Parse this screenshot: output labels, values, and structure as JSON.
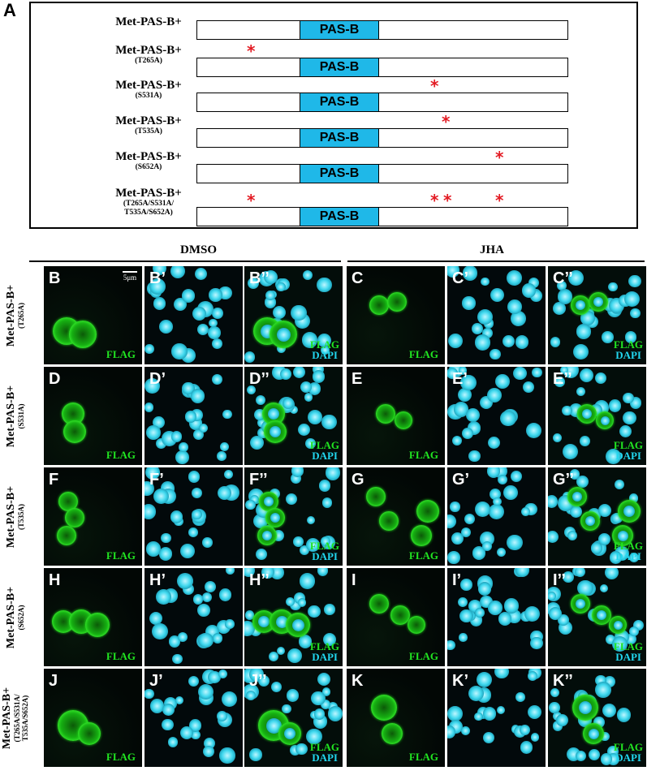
{
  "panel_a": {
    "letter": "A",
    "domain_label": "PAS-B",
    "constructs": [
      {
        "name": "Met-PAS-B+",
        "mutation": "",
        "sites": []
      },
      {
        "name": "Met-PAS-B+",
        "mutation": "(T265A)",
        "sites": [
          "T265A"
        ]
      },
      {
        "name": "Met-PAS-B+",
        "mutation": "(S531A)",
        "sites": [
          "S531A"
        ]
      },
      {
        "name": "Met-PAS-B+",
        "mutation": "(T535A)",
        "sites": [
          "T535A"
        ]
      },
      {
        "name": "Met-PAS-B+",
        "mutation": "(S652A)",
        "sites": [
          "S652A"
        ]
      },
      {
        "name": "Met-PAS-B+",
        "mutation": "(T265A/S531A/ T535A/S652A)",
        "sites": [
          "T265A",
          "S531A",
          "T535A",
          "S652A"
        ]
      }
    ],
    "mutation_marker": "*",
    "marker_color": "#e31b23",
    "domain_color": "#1fb8e8"
  },
  "conditions": [
    "DMSO",
    "JHA"
  ],
  "scale_bar": "5μm",
  "channels": {
    "flag": "FLAG",
    "dapi": "DAPI",
    "flag_color": "#21e321",
    "dapi_color": "#22d6ee"
  },
  "rows": [
    {
      "name": "Met-PAS-B+",
      "mutation": "(T265A)",
      "panels": [
        "B",
        "B’",
        "B’’",
        "C",
        "C’",
        "C’’"
      ]
    },
    {
      "name": "Met-PAS-B+",
      "mutation": "(S531A)",
      "panels": [
        "D",
        "D’",
        "D’’",
        "E",
        "E’",
        "E’’"
      ]
    },
    {
      "name": "Met-PAS-B+",
      "mutation": "(T535A)",
      "panels": [
        "F",
        "F’",
        "F’’",
        "G",
        "G’",
        "G’’"
      ]
    },
    {
      "name": "Met-PAS-B+",
      "mutation": "(S652A)",
      "panels": [
        "H",
        "H’",
        "H’’",
        "I",
        "I’",
        "I’’"
      ]
    },
    {
      "name": "Met-PAS-B+",
      "mutation": "(T265A/S531A/ T535A/S652A)",
      "panels": [
        "J",
        "J’",
        "J’’",
        "K",
        "K’",
        "K’’"
      ]
    }
  ]
}
